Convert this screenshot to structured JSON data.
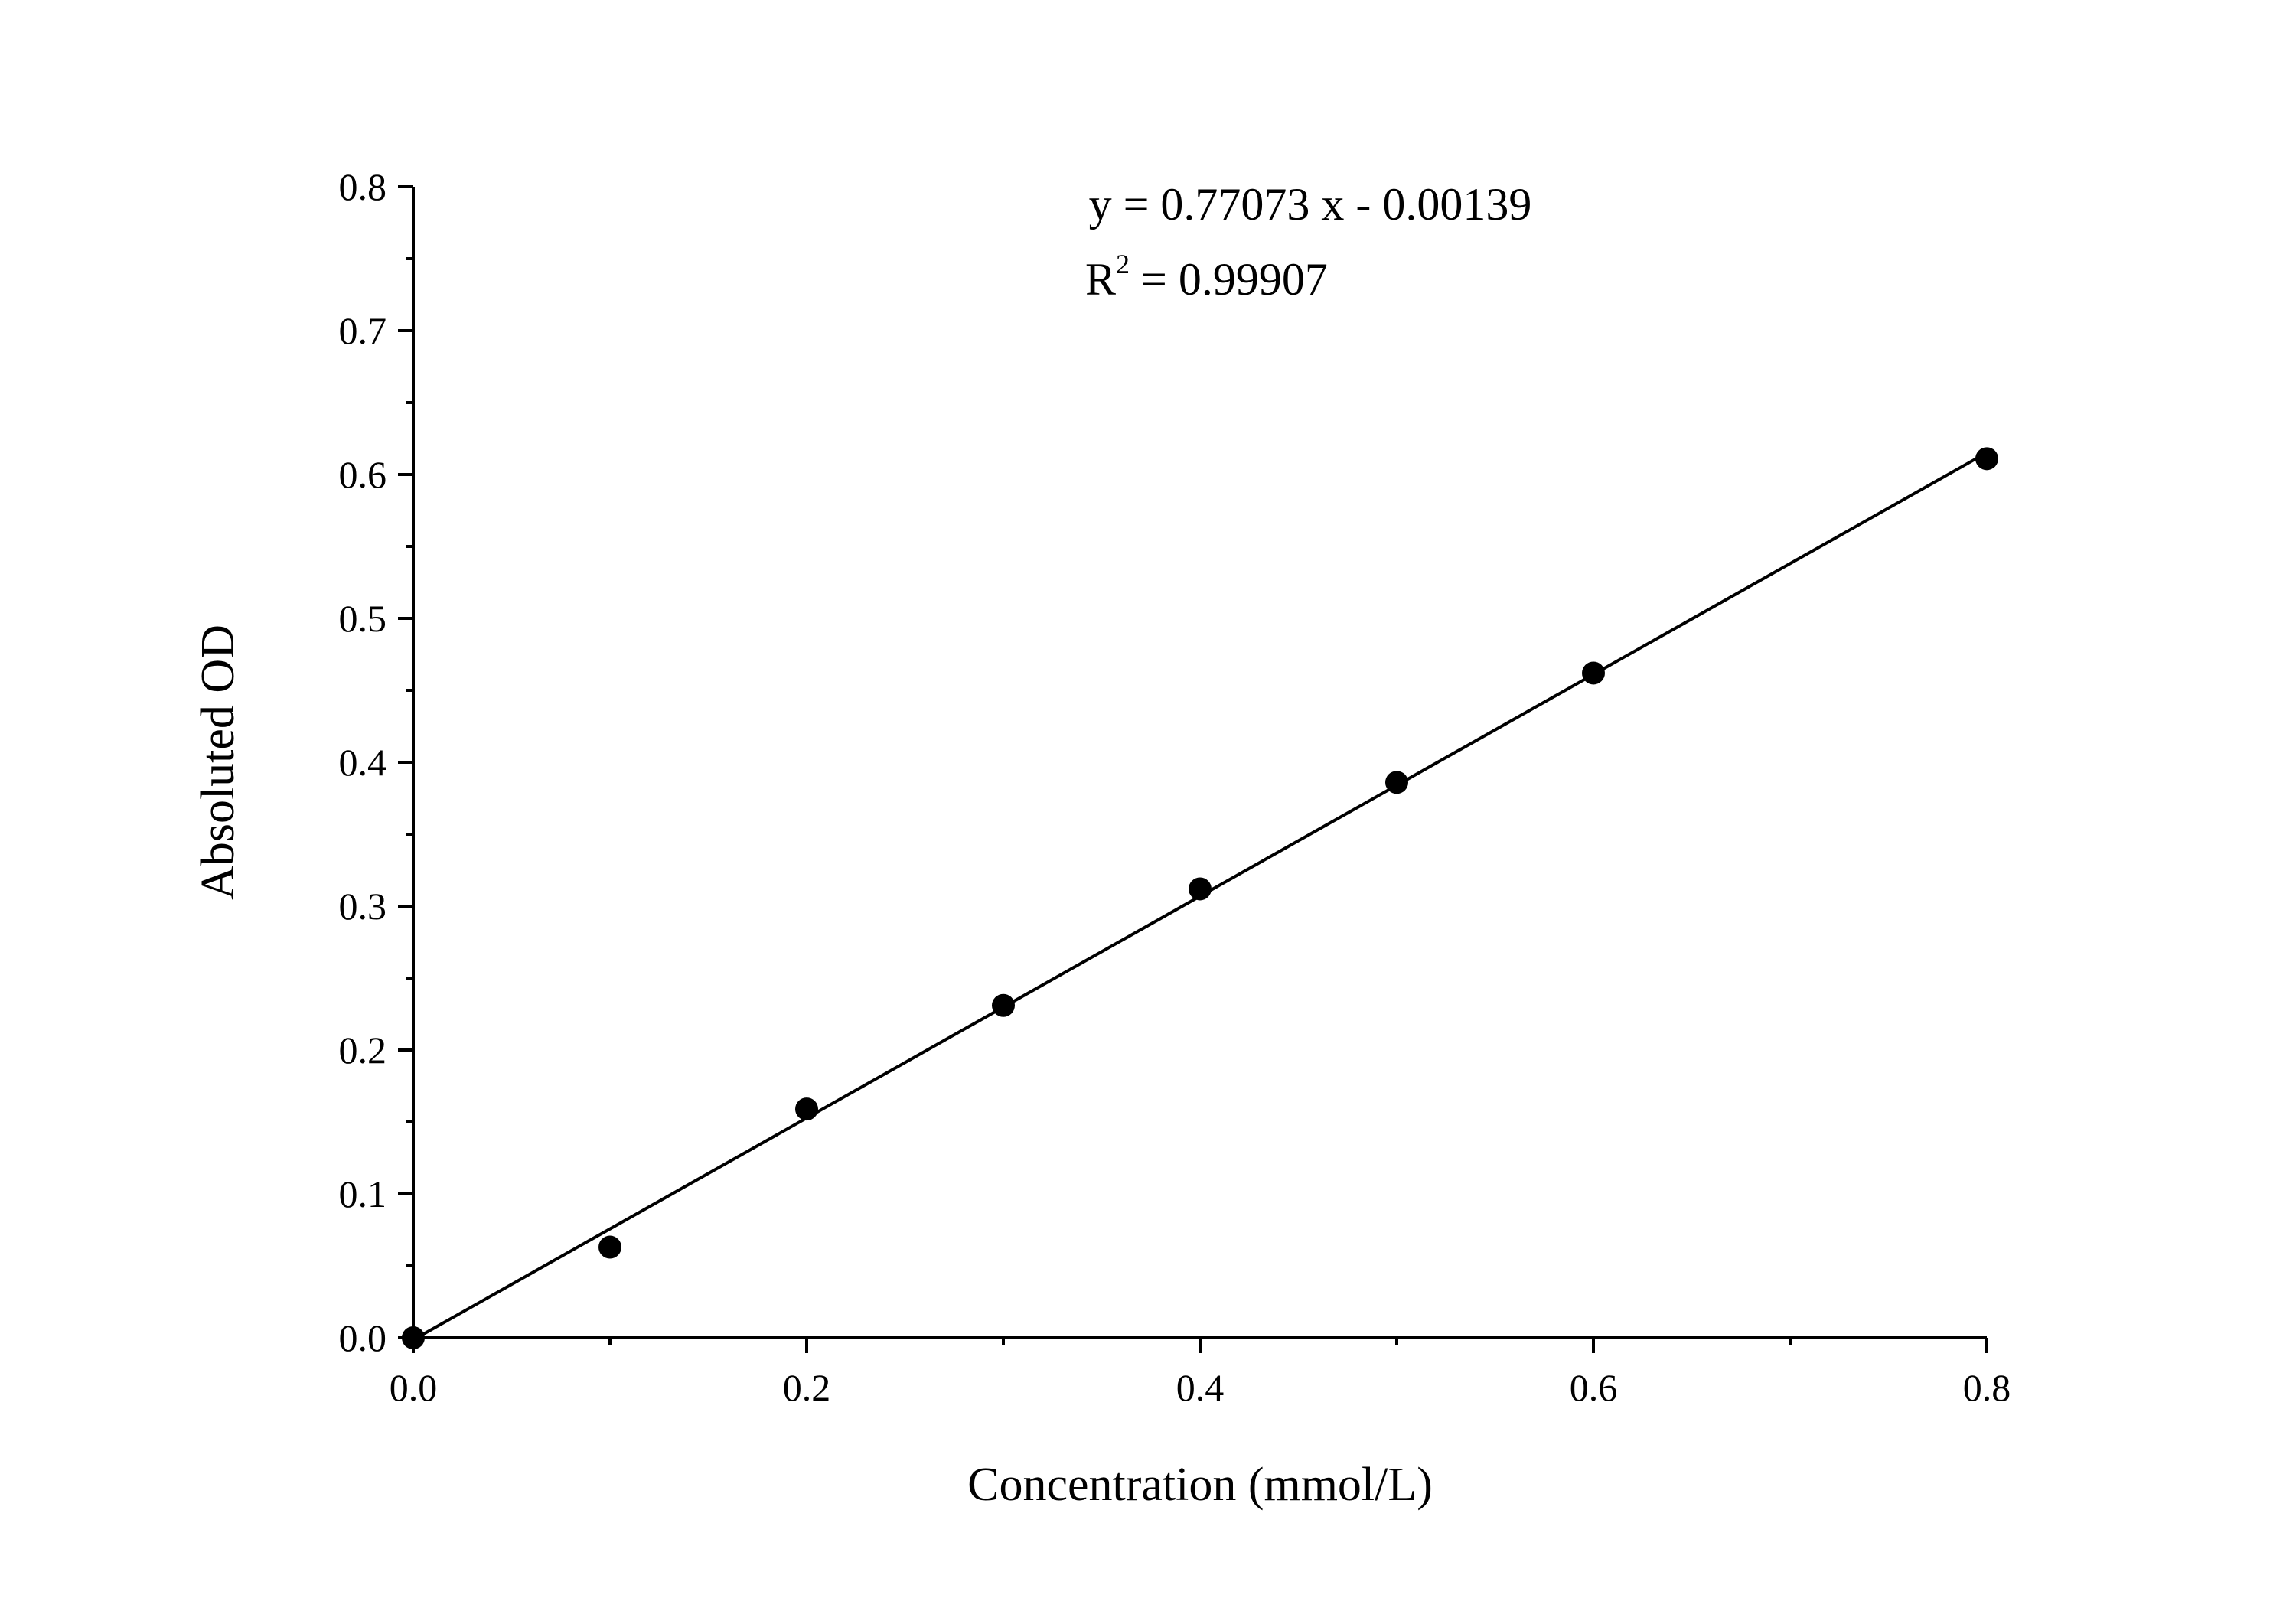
{
  "chart_data": {
    "type": "scatter",
    "xlabel": "Concentration (mmol/L)",
    "ylabel": "Absoluted OD",
    "xlim": [
      0,
      0.8
    ],
    "ylim": [
      0,
      0.8
    ],
    "xticks": [
      "0.0",
      "0.2",
      "0.4",
      "0.6",
      "0.8"
    ],
    "yticks": [
      "0.0",
      "0.1",
      "0.2",
      "0.3",
      "0.4",
      "0.5",
      "0.6",
      "0.7",
      "0.8"
    ],
    "grid": false,
    "points": [
      {
        "x": 0.0,
        "y": 0.0
      },
      {
        "x": 0.1,
        "y": 0.063
      },
      {
        "x": 0.2,
        "y": 0.159
      },
      {
        "x": 0.3,
        "y": 0.231
      },
      {
        "x": 0.4,
        "y": 0.312
      },
      {
        "x": 0.5,
        "y": 0.386
      },
      {
        "x": 0.6,
        "y": 0.462
      },
      {
        "x": 0.8,
        "y": 0.611
      }
    ],
    "fit": {
      "slope": 0.77073,
      "intercept": -0.00139
    },
    "annotations": {
      "equation": "y = 0.77073 x - 0.00139",
      "r2_label": "R",
      "r2_sup": "2",
      "r2_value": " = 0.99907"
    },
    "colors": {
      "marker": "#000000",
      "line": "#000000"
    }
  }
}
